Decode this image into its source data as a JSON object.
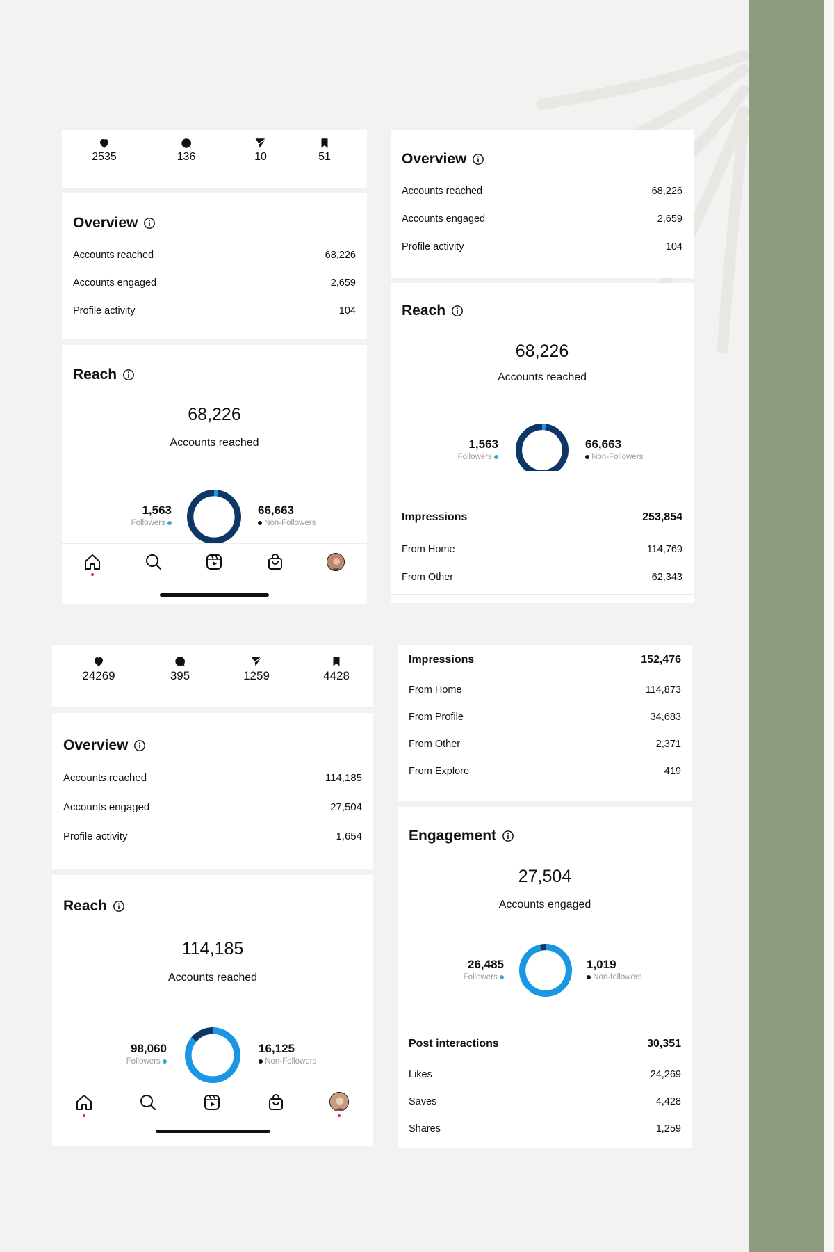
{
  "colors": {
    "dark_navy": "#0d3766",
    "light_blue": "#1a96e3",
    "followers_dot": "#3aa3d9",
    "nonfollowers_dot": "#111111",
    "accent_band": "#8f9b80"
  },
  "p1": {
    "stats": {
      "likes": "2535",
      "comments": "136",
      "shares": "10",
      "saves": "51"
    },
    "overview": {
      "title": "Overview",
      "rows": [
        {
          "label": "Accounts reached",
          "value": "68,226"
        },
        {
          "label": "Accounts engaged",
          "value": "2,659"
        },
        {
          "label": "Profile activity",
          "value": "104"
        }
      ]
    },
    "reach": {
      "title": "Reach",
      "total": "68,226",
      "total_label": "Accounts reached",
      "followers_value": "1,563",
      "followers_label": "Followers",
      "nonfollowers_value": "66,663",
      "nonfollowers_label": "Non-Followers",
      "followers_fraction": 0.023
    }
  },
  "p2": {
    "overview": {
      "title": "Overview",
      "rows": [
        {
          "label": "Accounts reached",
          "value": "68,226"
        },
        {
          "label": "Accounts engaged",
          "value": "2,659"
        },
        {
          "label": "Profile activity",
          "value": "104"
        }
      ]
    },
    "reach": {
      "title": "Reach",
      "total": "68,226",
      "total_label": "Accounts reached",
      "followers_value": "1,563",
      "followers_label": "Followers",
      "nonfollowers_value": "66,663",
      "nonfollowers_label": "Non-Followers",
      "followers_fraction": 0.023
    },
    "impressions": {
      "label": "Impressions",
      "value": "253,854",
      "rows": [
        {
          "label": "From Home",
          "value": "114,769"
        },
        {
          "label": "From Other",
          "value": "62,343"
        }
      ]
    }
  },
  "p3": {
    "stats": {
      "likes": "24269",
      "comments": "395",
      "shares": "1259",
      "saves": "4428"
    },
    "overview": {
      "title": "Overview",
      "rows": [
        {
          "label": "Accounts reached",
          "value": "114,185"
        },
        {
          "label": "Accounts engaged",
          "value": "27,504"
        },
        {
          "label": "Profile activity",
          "value": "1,654"
        }
      ]
    },
    "reach": {
      "title": "Reach",
      "total": "114,185",
      "total_label": "Accounts reached",
      "followers_value": "98,060",
      "followers_label": "Followers",
      "nonfollowers_value": "16,125",
      "nonfollowers_label": "Non-Followers",
      "followers_fraction": 0.859
    }
  },
  "p4": {
    "impressions": {
      "label": "Impressions",
      "value": "152,476",
      "rows": [
        {
          "label": "From Home",
          "value": "114,873"
        },
        {
          "label": "From Profile",
          "value": "34,683"
        },
        {
          "label": "From Other",
          "value": "2,371"
        },
        {
          "label": "From Explore",
          "value": "419"
        }
      ]
    },
    "engagement": {
      "title": "Engagement",
      "total": "27,504",
      "total_label": "Accounts engaged",
      "followers_value": "26,485",
      "followers_label": "Followers",
      "nonfollowers_value": "1,019",
      "nonfollowers_label": "Non-followers",
      "followers_fraction": 0.963
    },
    "interactions": {
      "label": "Post interactions",
      "value": "30,351",
      "rows": [
        {
          "label": "Likes",
          "value": "24,269"
        },
        {
          "label": "Saves",
          "value": "4,428"
        },
        {
          "label": "Shares",
          "value": "1,259"
        }
      ]
    }
  }
}
